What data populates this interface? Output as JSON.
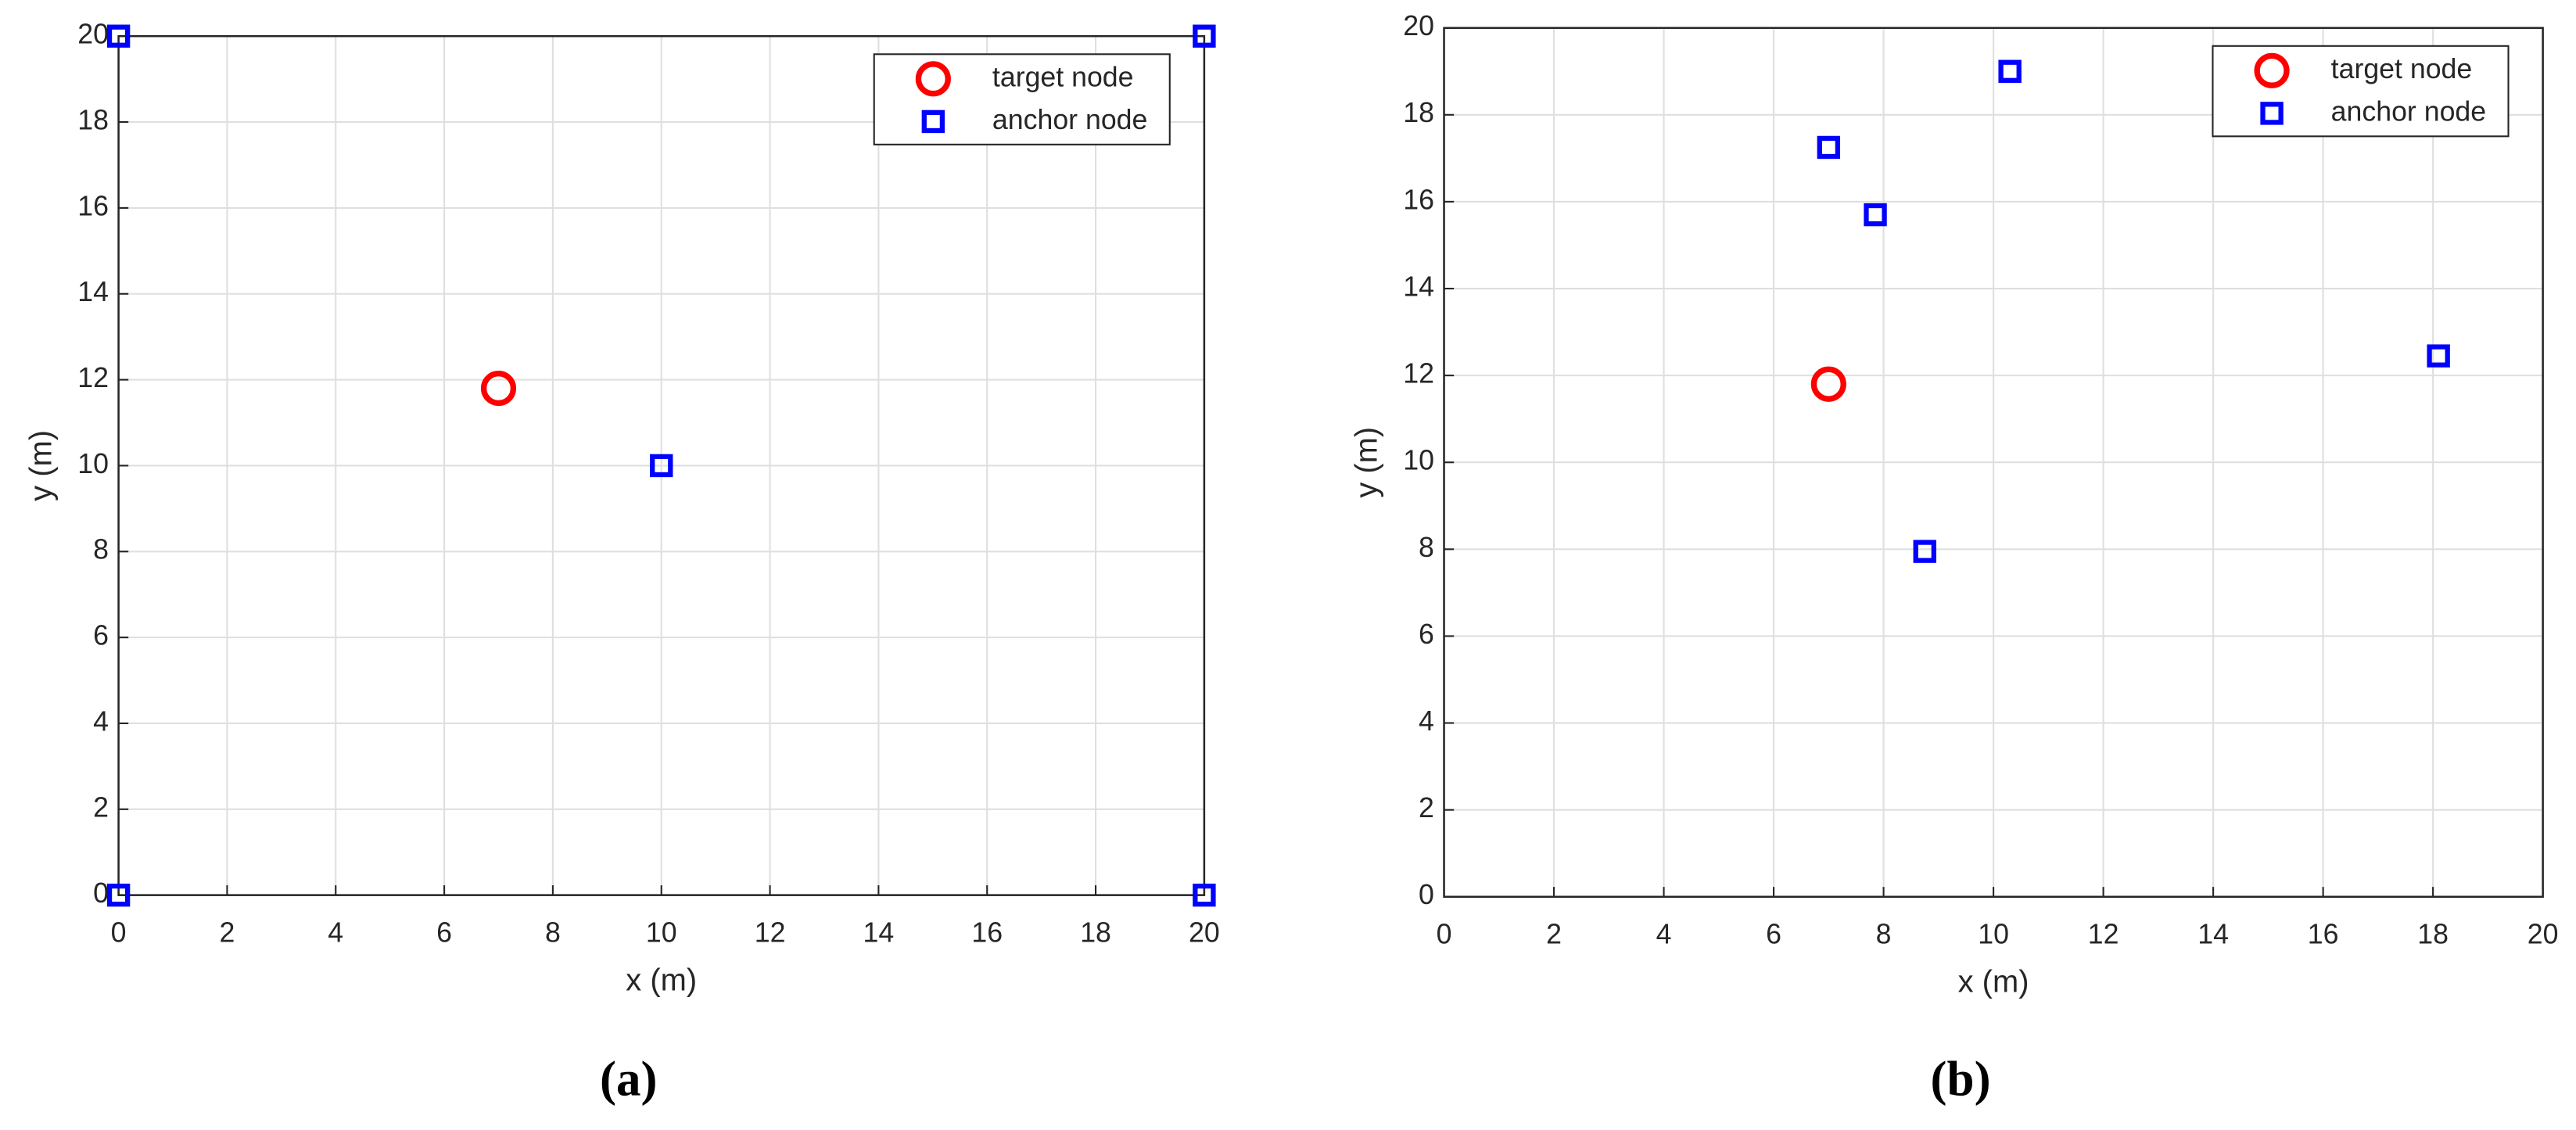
{
  "chart_data": [
    {
      "type": "scatter",
      "caption": "(a)",
      "xlabel": "x (m)",
      "ylabel": "y (m)",
      "xlim": [
        0,
        20
      ],
      "ylim": [
        0,
        20
      ],
      "xticks": [
        0,
        2,
        4,
        6,
        8,
        10,
        12,
        14,
        16,
        18,
        20
      ],
      "yticks": [
        0,
        2,
        4,
        6,
        8,
        10,
        12,
        14,
        16,
        18,
        20
      ],
      "grid": true,
      "legend": "upper right",
      "series": [
        {
          "name": "target node",
          "color": "#ff0000",
          "marker": "circle",
          "x": [
            7
          ],
          "values": [
            11.8
          ]
        },
        {
          "name": "anchor node",
          "color": "#0000ff",
          "marker": "square",
          "x": [
            0,
            0,
            20,
            20,
            10
          ],
          "values": [
            0,
            20,
            20,
            0,
            10
          ]
        }
      ]
    },
    {
      "type": "scatter",
      "caption": "(b)",
      "xlabel": "x (m)",
      "ylabel": "y (m)",
      "xlim": [
        0,
        20
      ],
      "ylim": [
        0,
        20
      ],
      "xticks": [
        0,
        2,
        4,
        6,
        8,
        10,
        12,
        14,
        16,
        18,
        20
      ],
      "yticks": [
        0,
        2,
        4,
        6,
        8,
        10,
        12,
        14,
        16,
        18,
        20
      ],
      "grid": true,
      "legend": "upper right",
      "series": [
        {
          "name": "target node",
          "color": "#ff0000",
          "marker": "circle",
          "x": [
            7
          ],
          "values": [
            11.8
          ]
        },
        {
          "name": "anchor node",
          "color": "#0000ff",
          "marker": "square",
          "x": [
            7,
            7.85,
            10.3,
            18.1,
            8.75
          ],
          "values": [
            17.25,
            15.7,
            19,
            12.45,
            7.95
          ]
        }
      ]
    }
  ]
}
